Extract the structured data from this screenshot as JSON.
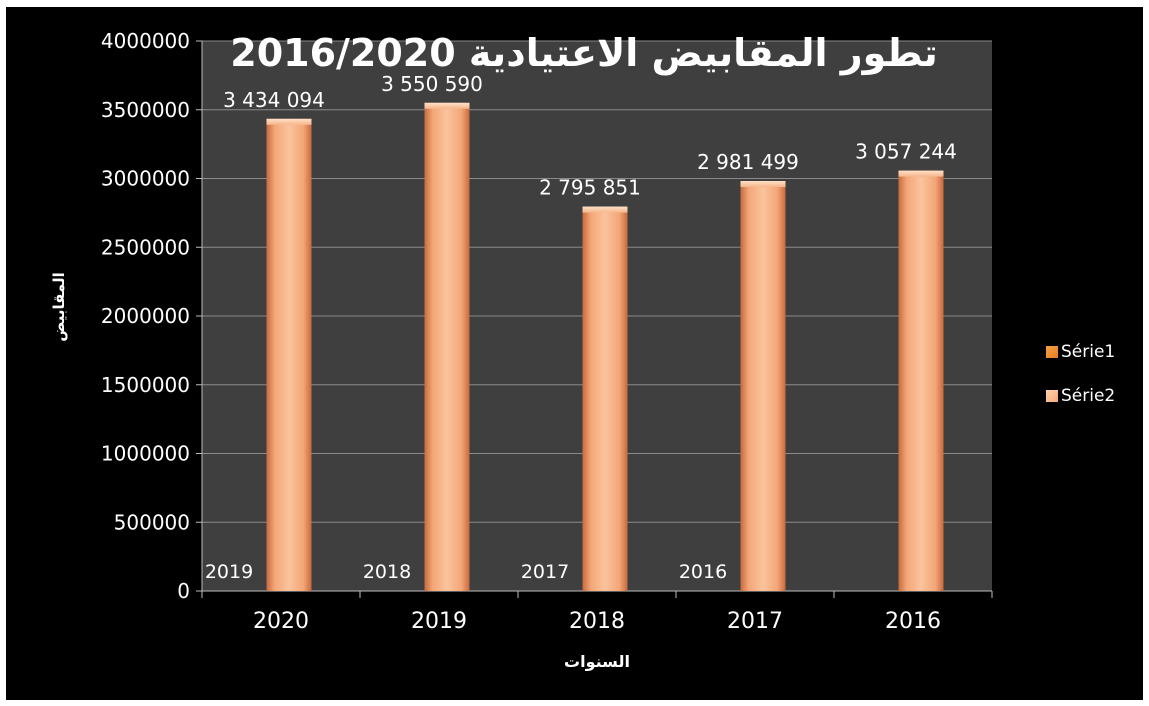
{
  "chart_data": {
    "type": "bar",
    "title": "تطور المقابيض الاعتيادية 2016/2020",
    "xlabel": "السنوات",
    "ylabel": "المقابيض",
    "categories": [
      "2020",
      "2019",
      "2018",
      "2017",
      "2016"
    ],
    "series": [
      {
        "name": "Série1",
        "values": [
          2019,
          2018,
          2017,
          2016,
          null
        ],
        "data_labels": [
          "2019",
          "2018",
          "2017",
          "2016",
          ""
        ]
      },
      {
        "name": "Série2",
        "values": [
          3434094,
          3550590,
          2795851,
          2981499,
          3057244
        ],
        "data_labels": [
          "3 434 094",
          "3 550 590",
          "2 795 851",
          "2 981 499",
          "3 057 244"
        ]
      }
    ],
    "ylim": [
      0,
      4000000
    ],
    "yticks": [
      "0",
      "500000",
      "1000000",
      "1500000",
      "2000000",
      "2500000",
      "3000000",
      "3500000",
      "4000000"
    ],
    "grid": true,
    "legend_position": "right",
    "colors": {
      "plot_background": "#3f3f3f",
      "frame_background": "#000000",
      "bar": "#f4a878",
      "serie1_swatch": "#e67e22",
      "serie2_swatch": "#f4a878",
      "gridline": "#8a8a8a",
      "text": "#ffffff"
    }
  }
}
